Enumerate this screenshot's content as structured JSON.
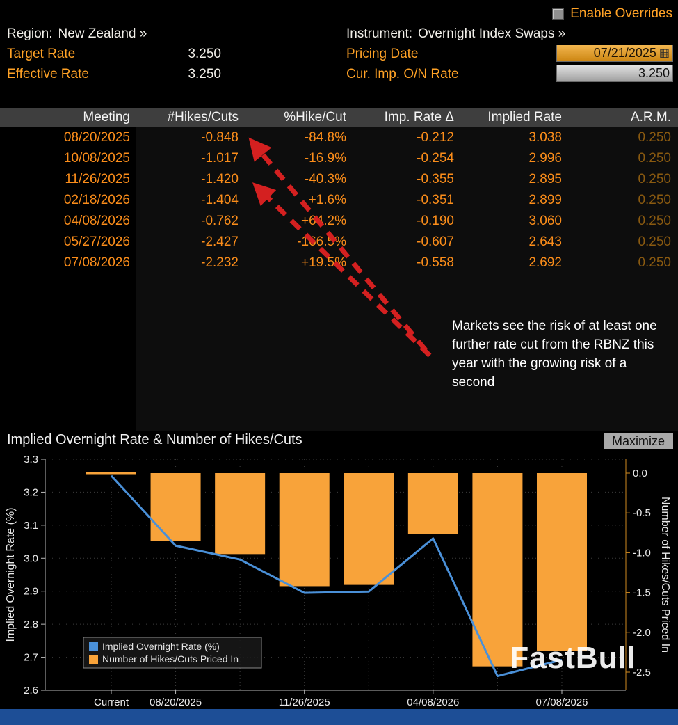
{
  "colors": {
    "amber": "#fb8d1a",
    "label_amber": "#ffa226",
    "blue_line": "#4a90d8",
    "bar_orange": "#f8a33a",
    "arrow_red": "#d42020",
    "footer_blue": "#1d4e96"
  },
  "header": {
    "enable_overrides_label": "Enable Overrides",
    "region_label": "Region:",
    "region_value": "New Zealand »",
    "instrument_label": "Instrument:",
    "instrument_value": "Overnight Index Swaps »",
    "target_rate_label": "Target Rate",
    "target_rate_value": "3.250",
    "effective_rate_label": "Effective Rate",
    "effective_rate_value": "3.250",
    "pricing_date_label": "Pricing Date",
    "pricing_date_value": "07/21/2025",
    "cur_imp_on_rate_label": "Cur. Imp. O/N Rate",
    "cur_imp_on_rate_value": "3.250"
  },
  "table": {
    "columns": [
      "Meeting",
      "#Hikes/Cuts",
      "%Hike/Cut",
      "Imp. Rate Δ",
      "Implied Rate",
      "A.R.M."
    ],
    "rows": [
      [
        "08/20/2025",
        "-0.848",
        "-84.8%",
        "-0.212",
        "3.038",
        "0.250"
      ],
      [
        "10/08/2025",
        "-1.017",
        "-16.9%",
        "-0.254",
        "2.996",
        "0.250"
      ],
      [
        "11/26/2025",
        "-1.420",
        "-40.3%",
        "-0.355",
        "2.895",
        "0.250"
      ],
      [
        "02/18/2026",
        "-1.404",
        "+1.6%",
        "-0.351",
        "2.899",
        "0.250"
      ],
      [
        "04/08/2026",
        "-0.762",
        "+64.2%",
        "-0.190",
        "3.060",
        "0.250"
      ],
      [
        "05/27/2026",
        "-2.427",
        "-166.5%",
        "-0.607",
        "2.643",
        "0.250"
      ],
      [
        "07/08/2026",
        "-2.232",
        "+19.5%",
        "-0.558",
        "2.692",
        "0.250"
      ]
    ]
  },
  "annotation_text": "Markets see the risk of at least one further rate cut from the RBNZ this year with the growing risk of a second",
  "chart_panel": {
    "title": "Implied Overnight Rate & Number of Hikes/Cuts",
    "maximize_label": "Maximize",
    "watermark": "FastBull"
  },
  "chart_data": {
    "type": "line+bar",
    "categories": [
      "Current",
      "08/20/2025",
      "10/08/2025",
      "11/26/2025",
      "02/18/2026",
      "04/08/2026",
      "05/27/2026",
      "07/08/2026"
    ],
    "x_tick_indices": [
      0,
      1,
      3,
      5,
      7
    ],
    "series": [
      {
        "name": "Implied Overnight Rate (%)",
        "type": "line",
        "axis": "left",
        "color": "#4a90d8",
        "values": [
          3.25,
          3.038,
          2.996,
          2.895,
          2.899,
          3.06,
          2.643,
          2.692
        ]
      },
      {
        "name": "Number of Hikes/Cuts Priced In",
        "type": "bar",
        "axis": "right",
        "color": "#f8a33a",
        "values": [
          0.0,
          -0.848,
          -1.017,
          -1.42,
          -1.404,
          -0.762,
          -2.427,
          -2.232
        ]
      }
    ],
    "left_axis": {
      "label": "Implied Overnight Rate (%)",
      "min": 2.6,
      "max": 3.3,
      "ticks": [
        3.3,
        3.2,
        3.1,
        3.0,
        2.9,
        2.8,
        2.7,
        2.6
      ]
    },
    "right_axis": {
      "label": "Number of Hikes/Cuts Priced In",
      "min": -2.5,
      "max": 0.0,
      "ticks": [
        0.0,
        -0.5,
        -1.0,
        -1.5,
        -2.0,
        -2.5
      ]
    },
    "grid": true,
    "legend_position": "bottom-left"
  }
}
